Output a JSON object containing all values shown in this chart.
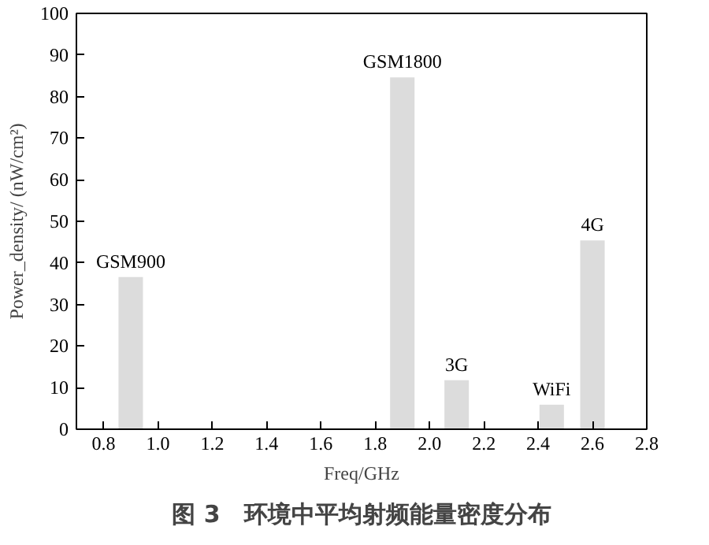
{
  "chart_data": {
    "type": "bar",
    "title": "图 3　环境中平均射频能量密度分布",
    "xlabel": "Freq/GHz",
    "ylabel": "Power_density/ (nW/cm²)",
    "x": [
      0.9,
      1.9,
      2.1,
      2.45,
      2.6
    ],
    "values": [
      36.6,
      84.6,
      11.8,
      5.9,
      45.4
    ],
    "color": "#dcdcdc",
    "xlim": [
      0.7,
      2.8
    ],
    "xticks": [
      {
        "value": 0.8,
        "label": "0.8"
      },
      {
        "value": 1.0,
        "label": "1.0"
      },
      {
        "value": 1.2,
        "label": "1.2"
      },
      {
        "value": 1.4,
        "label": "1.4"
      },
      {
        "value": 1.6,
        "label": "1.6"
      },
      {
        "value": 1.8,
        "label": "1.8"
      },
      {
        "value": 2.0,
        "label": "2.0"
      },
      {
        "value": 2.2,
        "label": "2.2"
      },
      {
        "value": 2.4,
        "label": "2.4"
      },
      {
        "value": 2.6,
        "label": "2.6"
      },
      {
        "value": 2.8,
        "label": "2.8"
      }
    ],
    "ylim": [
      0,
      100
    ],
    "yticks": [
      0,
      10,
      20,
      30,
      40,
      50,
      60,
      70,
      80,
      90,
      100
    ],
    "grid": false,
    "annotations": [
      {
        "text": "GSM900",
        "x": 0.9,
        "y": 36.6
      },
      {
        "text": "GSM1800",
        "x": 1.9,
        "y": 84.6
      },
      {
        "text": "3G",
        "x": 2.1,
        "y": 11.8
      },
      {
        "text": "WiFi",
        "x": 2.45,
        "y": 5.9
      },
      {
        "text": "4G",
        "x": 2.6,
        "y": 45.4
      }
    ]
  }
}
